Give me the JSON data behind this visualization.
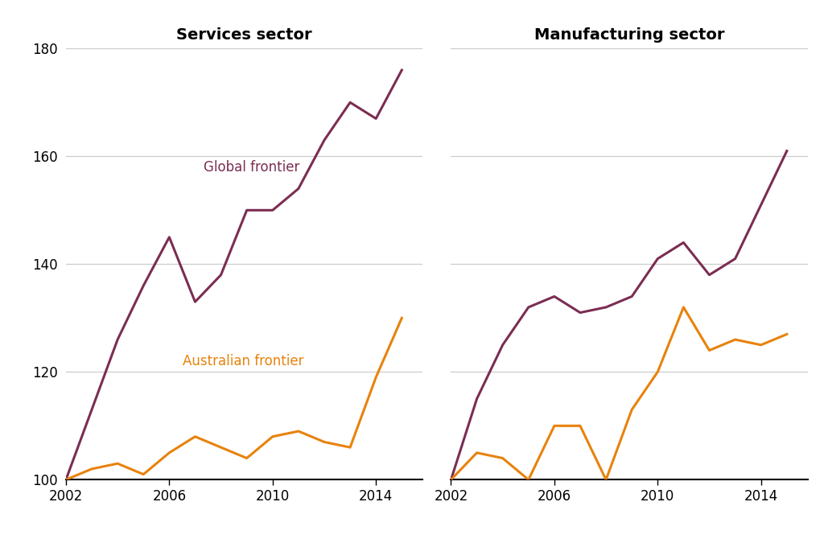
{
  "services_years": [
    2002,
    2003,
    2004,
    2005,
    2006,
    2007,
    2008,
    2009,
    2010,
    2011,
    2012,
    2013,
    2014,
    2015
  ],
  "services_global": [
    100,
    113,
    126,
    136,
    145,
    133,
    138,
    150,
    150,
    154,
    163,
    170,
    167,
    176
  ],
  "services_aus": [
    100,
    102,
    103,
    101,
    105,
    108,
    106,
    104,
    108,
    109,
    107,
    106,
    119,
    130
  ],
  "manuf_years": [
    2002,
    2003,
    2004,
    2005,
    2006,
    2007,
    2008,
    2009,
    2010,
    2011,
    2012,
    2013,
    2014,
    2015
  ],
  "manuf_global": [
    100,
    115,
    125,
    132,
    134,
    131,
    132,
    134,
    141,
    144,
    138,
    141,
    151,
    161
  ],
  "manuf_aus": [
    100,
    105,
    104,
    100,
    110,
    110,
    100,
    113,
    120,
    132,
    124,
    126,
    125,
    127
  ],
  "services_title": "Services sector",
  "manuf_title": "Manufacturing sector",
  "global_label": "Global frontier",
  "aus_label": "Australian frontier",
  "global_color": "#7B2D52",
  "aus_color": "#E8820C",
  "ylim": [
    100,
    180
  ],
  "yticks": [
    100,
    120,
    140,
    160,
    180
  ],
  "xticks": [
    2002,
    2006,
    2010,
    2014
  ],
  "line_width": 2.2,
  "label_fontsize": 12,
  "title_fontsize": 14,
  "tick_fontsize": 12
}
